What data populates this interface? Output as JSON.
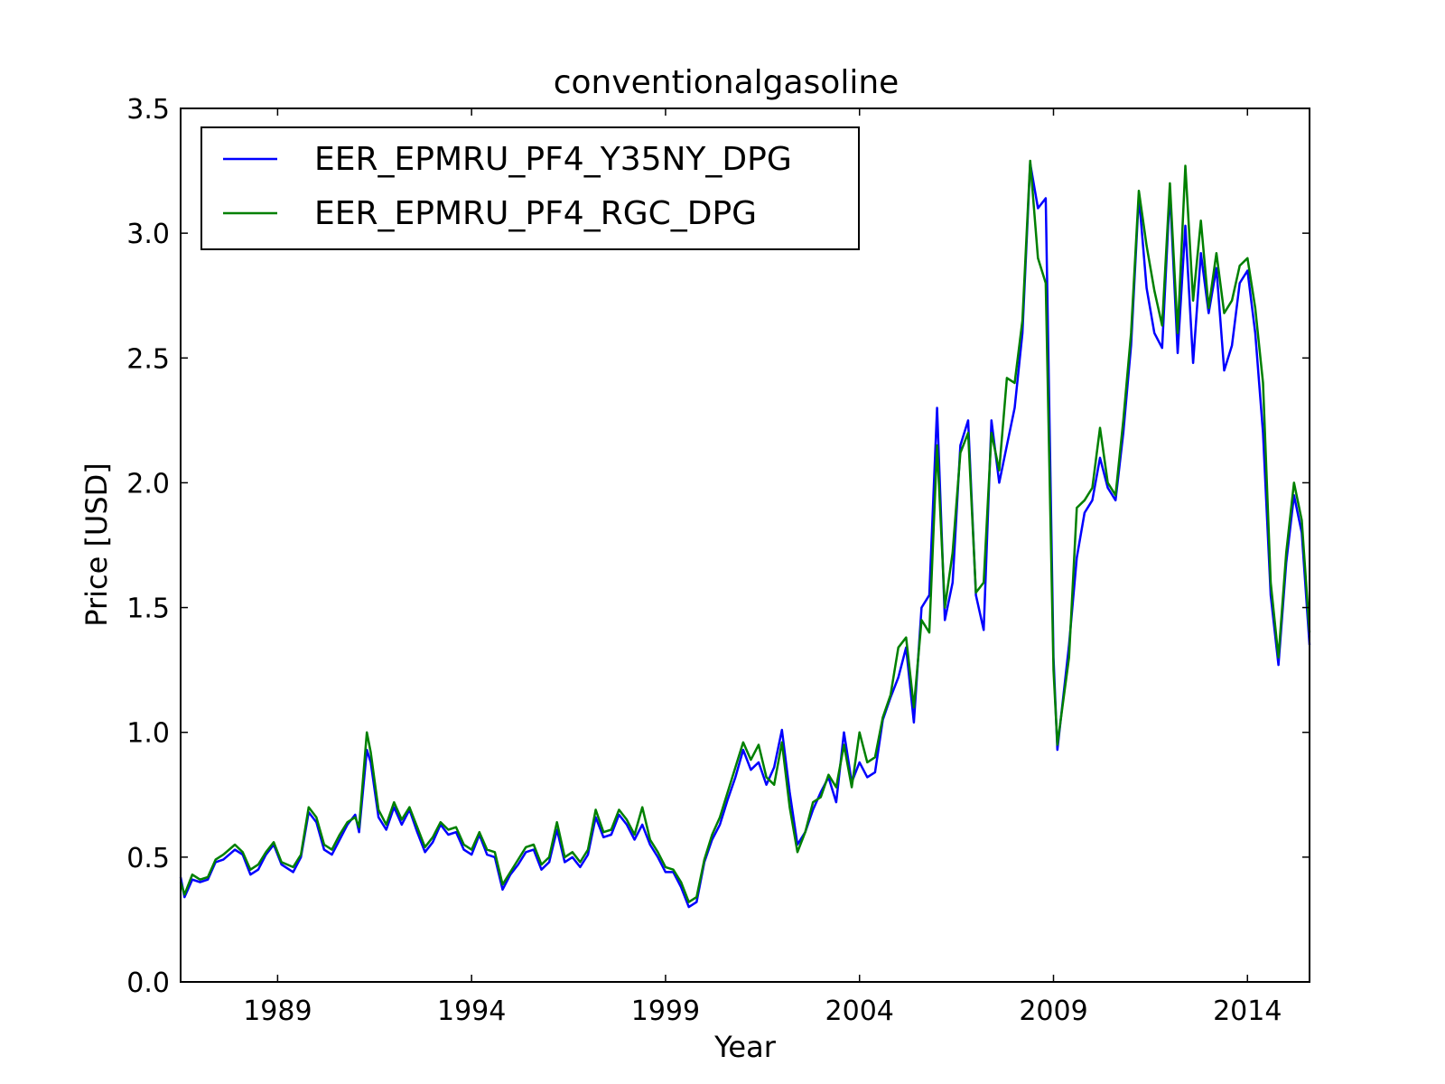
{
  "chart_data": {
    "type": "line",
    "title": "conventionalgasoline",
    "xlabel": "Year",
    "ylabel": "Price [USD]",
    "xlim": [
      1986.5,
      2015.6
    ],
    "ylim": [
      0.0,
      3.5
    ],
    "xticks": [
      1989,
      1994,
      1999,
      2004,
      2009,
      2014
    ],
    "xtick_labels": [
      "1989",
      "1994",
      "1999",
      "2004",
      "2009",
      "2014"
    ],
    "yticks": [
      0.0,
      0.5,
      1.0,
      1.5,
      2.0,
      2.5,
      3.0,
      3.5
    ],
    "ytick_labels": [
      "0.0",
      "0.5",
      "1.0",
      "1.5",
      "2.0",
      "2.5",
      "3.0",
      "3.5"
    ],
    "grid": false,
    "legend_position": "top-left",
    "series": [
      {
        "name": "EER_EPMRU_PF4_Y35NY_DPG",
        "color": "#0000ff",
        "points": [
          [
            1986.5,
            0.42
          ],
          [
            1986.6,
            0.34
          ],
          [
            1986.8,
            0.41
          ],
          [
            1987.0,
            0.4
          ],
          [
            1987.2,
            0.41
          ],
          [
            1987.4,
            0.48
          ],
          [
            1987.6,
            0.49
          ],
          [
            1987.9,
            0.53
          ],
          [
            1988.1,
            0.51
          ],
          [
            1988.3,
            0.43
          ],
          [
            1988.5,
            0.45
          ],
          [
            1988.7,
            0.51
          ],
          [
            1988.9,
            0.55
          ],
          [
            1989.1,
            0.47
          ],
          [
            1989.4,
            0.44
          ],
          [
            1989.6,
            0.5
          ],
          [
            1989.8,
            0.68
          ],
          [
            1990.0,
            0.64
          ],
          [
            1990.2,
            0.53
          ],
          [
            1990.4,
            0.51
          ],
          [
            1990.6,
            0.57
          ],
          [
            1990.8,
            0.63
          ],
          [
            1991.0,
            0.67
          ],
          [
            1991.1,
            0.6
          ],
          [
            1991.3,
            0.93
          ],
          [
            1991.4,
            0.88
          ],
          [
            1991.6,
            0.66
          ],
          [
            1991.8,
            0.61
          ],
          [
            1992.0,
            0.7
          ],
          [
            1992.2,
            0.63
          ],
          [
            1992.4,
            0.69
          ],
          [
            1992.6,
            0.6
          ],
          [
            1992.8,
            0.52
          ],
          [
            1993.0,
            0.56
          ],
          [
            1993.2,
            0.63
          ],
          [
            1993.4,
            0.59
          ],
          [
            1993.6,
            0.6
          ],
          [
            1993.8,
            0.53
          ],
          [
            1994.0,
            0.51
          ],
          [
            1994.2,
            0.59
          ],
          [
            1994.4,
            0.51
          ],
          [
            1994.6,
            0.5
          ],
          [
            1994.8,
            0.37
          ],
          [
            1995.0,
            0.43
          ],
          [
            1995.2,
            0.47
          ],
          [
            1995.4,
            0.52
          ],
          [
            1995.6,
            0.53
          ],
          [
            1995.8,
            0.45
          ],
          [
            1996.0,
            0.48
          ],
          [
            1996.2,
            0.61
          ],
          [
            1996.4,
            0.48
          ],
          [
            1996.6,
            0.5
          ],
          [
            1996.8,
            0.46
          ],
          [
            1997.0,
            0.51
          ],
          [
            1997.2,
            0.66
          ],
          [
            1997.4,
            0.58
          ],
          [
            1997.6,
            0.59
          ],
          [
            1997.8,
            0.67
          ],
          [
            1998.0,
            0.63
          ],
          [
            1998.2,
            0.57
          ],
          [
            1998.4,
            0.63
          ],
          [
            1998.6,
            0.55
          ],
          [
            1998.8,
            0.5
          ],
          [
            1999.0,
            0.44
          ],
          [
            1999.2,
            0.44
          ],
          [
            1999.4,
            0.38
          ],
          [
            1999.6,
            0.3
          ],
          [
            1999.8,
            0.32
          ],
          [
            2000.0,
            0.48
          ],
          [
            2000.2,
            0.57
          ],
          [
            2000.4,
            0.63
          ],
          [
            2000.6,
            0.73
          ],
          [
            2000.8,
            0.82
          ],
          [
            2001.0,
            0.93
          ],
          [
            2001.2,
            0.85
          ],
          [
            2001.4,
            0.88
          ],
          [
            2001.6,
            0.79
          ],
          [
            2001.8,
            0.86
          ],
          [
            2002.0,
            1.01
          ],
          [
            2002.2,
            0.76
          ],
          [
            2002.4,
            0.55
          ],
          [
            2002.6,
            0.6
          ],
          [
            2002.8,
            0.69
          ],
          [
            2003.0,
            0.76
          ],
          [
            2003.2,
            0.82
          ],
          [
            2003.4,
            0.72
          ],
          [
            2003.6,
            1.0
          ],
          [
            2003.8,
            0.8
          ],
          [
            2004.0,
            0.88
          ],
          [
            2004.2,
            0.82
          ],
          [
            2004.4,
            0.84
          ],
          [
            2004.6,
            1.05
          ],
          [
            2004.8,
            1.14
          ],
          [
            2005.0,
            1.22
          ],
          [
            2005.2,
            1.34
          ],
          [
            2005.4,
            1.04
          ],
          [
            2005.6,
            1.5
          ],
          [
            2005.8,
            1.55
          ],
          [
            2006.0,
            2.3
          ],
          [
            2006.2,
            1.45
          ],
          [
            2006.4,
            1.6
          ],
          [
            2006.6,
            2.15
          ],
          [
            2006.8,
            2.25
          ],
          [
            2007.0,
            1.55
          ],
          [
            2007.2,
            1.41
          ],
          [
            2007.4,
            2.25
          ],
          [
            2007.6,
            2.0
          ],
          [
            2007.8,
            2.15
          ],
          [
            2008.0,
            2.3
          ],
          [
            2008.2,
            2.6
          ],
          [
            2008.4,
            3.28
          ],
          [
            2008.6,
            3.1
          ],
          [
            2008.8,
            3.14
          ],
          [
            2009.0,
            1.3
          ],
          [
            2009.1,
            0.93
          ],
          [
            2009.4,
            1.35
          ],
          [
            2009.6,
            1.7
          ],
          [
            2009.8,
            1.88
          ],
          [
            2010.0,
            1.93
          ],
          [
            2010.2,
            2.1
          ],
          [
            2010.4,
            1.98
          ],
          [
            2010.6,
            1.93
          ],
          [
            2010.8,
            2.2
          ],
          [
            2011.0,
            2.55
          ],
          [
            2011.2,
            3.15
          ],
          [
            2011.4,
            2.78
          ],
          [
            2011.6,
            2.6
          ],
          [
            2011.8,
            2.54
          ],
          [
            2012.0,
            3.17
          ],
          [
            2012.2,
            2.52
          ],
          [
            2012.4,
            3.03
          ],
          [
            2012.6,
            2.48
          ],
          [
            2012.8,
            2.92
          ],
          [
            2013.0,
            2.68
          ],
          [
            2013.2,
            2.86
          ],
          [
            2013.4,
            2.45
          ],
          [
            2013.6,
            2.55
          ],
          [
            2013.8,
            2.8
          ],
          [
            2014.0,
            2.85
          ],
          [
            2014.2,
            2.6
          ],
          [
            2014.4,
            2.2
          ],
          [
            2014.6,
            1.55
          ],
          [
            2014.8,
            1.27
          ],
          [
            2015.0,
            1.68
          ],
          [
            2015.2,
            1.95
          ],
          [
            2015.4,
            1.8
          ],
          [
            2015.6,
            1.35
          ]
        ]
      },
      {
        "name": "EER_EPMRU_PF4_RGC_DPG",
        "color": "#008000",
        "points": [
          [
            1986.5,
            0.4
          ],
          [
            1986.6,
            0.35
          ],
          [
            1986.8,
            0.43
          ],
          [
            1987.0,
            0.41
          ],
          [
            1987.2,
            0.42
          ],
          [
            1987.4,
            0.49
          ],
          [
            1987.6,
            0.51
          ],
          [
            1987.9,
            0.55
          ],
          [
            1988.1,
            0.52
          ],
          [
            1988.3,
            0.45
          ],
          [
            1988.5,
            0.47
          ],
          [
            1988.7,
            0.52
          ],
          [
            1988.9,
            0.56
          ],
          [
            1989.1,
            0.48
          ],
          [
            1989.4,
            0.46
          ],
          [
            1989.6,
            0.51
          ],
          [
            1989.8,
            0.7
          ],
          [
            1990.0,
            0.66
          ],
          [
            1990.2,
            0.55
          ],
          [
            1990.4,
            0.53
          ],
          [
            1990.6,
            0.59
          ],
          [
            1990.8,
            0.64
          ],
          [
            1991.0,
            0.66
          ],
          [
            1991.1,
            0.62
          ],
          [
            1991.3,
            1.0
          ],
          [
            1991.4,
            0.92
          ],
          [
            1991.6,
            0.69
          ],
          [
            1991.8,
            0.63
          ],
          [
            1992.0,
            0.72
          ],
          [
            1992.2,
            0.65
          ],
          [
            1992.4,
            0.7
          ],
          [
            1992.6,
            0.62
          ],
          [
            1992.8,
            0.54
          ],
          [
            1993.0,
            0.58
          ],
          [
            1993.2,
            0.64
          ],
          [
            1993.4,
            0.61
          ],
          [
            1993.6,
            0.62
          ],
          [
            1993.8,
            0.55
          ],
          [
            1994.0,
            0.53
          ],
          [
            1994.2,
            0.6
          ],
          [
            1994.4,
            0.53
          ],
          [
            1994.6,
            0.52
          ],
          [
            1994.8,
            0.39
          ],
          [
            1995.0,
            0.44
          ],
          [
            1995.2,
            0.49
          ],
          [
            1995.4,
            0.54
          ],
          [
            1995.6,
            0.55
          ],
          [
            1995.8,
            0.47
          ],
          [
            1996.0,
            0.5
          ],
          [
            1996.2,
            0.64
          ],
          [
            1996.4,
            0.5
          ],
          [
            1996.6,
            0.52
          ],
          [
            1996.8,
            0.48
          ],
          [
            1997.0,
            0.53
          ],
          [
            1997.2,
            0.69
          ],
          [
            1997.4,
            0.6
          ],
          [
            1997.6,
            0.61
          ],
          [
            1997.8,
            0.69
          ],
          [
            1998.0,
            0.65
          ],
          [
            1998.2,
            0.59
          ],
          [
            1998.4,
            0.7
          ],
          [
            1998.6,
            0.57
          ],
          [
            1998.8,
            0.52
          ],
          [
            1999.0,
            0.46
          ],
          [
            1999.2,
            0.45
          ],
          [
            1999.4,
            0.4
          ],
          [
            1999.6,
            0.32
          ],
          [
            1999.8,
            0.34
          ],
          [
            2000.0,
            0.49
          ],
          [
            2000.2,
            0.59
          ],
          [
            2000.4,
            0.66
          ],
          [
            2000.6,
            0.76
          ],
          [
            2000.8,
            0.86
          ],
          [
            2001.0,
            0.96
          ],
          [
            2001.2,
            0.89
          ],
          [
            2001.4,
            0.95
          ],
          [
            2001.6,
            0.82
          ],
          [
            2001.8,
            0.79
          ],
          [
            2002.0,
            0.96
          ],
          [
            2002.2,
            0.7
          ],
          [
            2002.4,
            0.52
          ],
          [
            2002.6,
            0.6
          ],
          [
            2002.8,
            0.72
          ],
          [
            2003.0,
            0.74
          ],
          [
            2003.2,
            0.83
          ],
          [
            2003.4,
            0.78
          ],
          [
            2003.6,
            0.95
          ],
          [
            2003.8,
            0.78
          ],
          [
            2004.0,
            1.0
          ],
          [
            2004.2,
            0.88
          ],
          [
            2004.4,
            0.9
          ],
          [
            2004.6,
            1.06
          ],
          [
            2004.8,
            1.15
          ],
          [
            2005.0,
            1.34
          ],
          [
            2005.2,
            1.38
          ],
          [
            2005.4,
            1.1
          ],
          [
            2005.6,
            1.45
          ],
          [
            2005.8,
            1.4
          ],
          [
            2006.0,
            2.15
          ],
          [
            2006.2,
            1.5
          ],
          [
            2006.4,
            1.72
          ],
          [
            2006.6,
            2.12
          ],
          [
            2006.8,
            2.2
          ],
          [
            2007.0,
            1.56
          ],
          [
            2007.2,
            1.6
          ],
          [
            2007.4,
            2.2
          ],
          [
            2007.6,
            2.05
          ],
          [
            2007.8,
            2.42
          ],
          [
            2008.0,
            2.4
          ],
          [
            2008.2,
            2.65
          ],
          [
            2008.4,
            3.29
          ],
          [
            2008.6,
            2.9
          ],
          [
            2008.8,
            2.8
          ],
          [
            2009.0,
            1.25
          ],
          [
            2009.1,
            0.95
          ],
          [
            2009.4,
            1.3
          ],
          [
            2009.6,
            1.9
          ],
          [
            2009.8,
            1.93
          ],
          [
            2010.0,
            1.98
          ],
          [
            2010.2,
            2.22
          ],
          [
            2010.4,
            2.0
          ],
          [
            2010.6,
            1.95
          ],
          [
            2010.8,
            2.25
          ],
          [
            2011.0,
            2.6
          ],
          [
            2011.2,
            3.17
          ],
          [
            2011.4,
            2.95
          ],
          [
            2011.6,
            2.77
          ],
          [
            2011.8,
            2.63
          ],
          [
            2012.0,
            3.2
          ],
          [
            2012.2,
            2.6
          ],
          [
            2012.4,
            3.27
          ],
          [
            2012.6,
            2.73
          ],
          [
            2012.8,
            3.05
          ],
          [
            2013.0,
            2.7
          ],
          [
            2013.2,
            2.92
          ],
          [
            2013.4,
            2.68
          ],
          [
            2013.6,
            2.73
          ],
          [
            2013.8,
            2.87
          ],
          [
            2014.0,
            2.9
          ],
          [
            2014.2,
            2.7
          ],
          [
            2014.4,
            2.4
          ],
          [
            2014.6,
            1.6
          ],
          [
            2014.8,
            1.3
          ],
          [
            2015.0,
            1.72
          ],
          [
            2015.2,
            2.0
          ],
          [
            2015.4,
            1.85
          ],
          [
            2015.6,
            1.4
          ]
        ]
      }
    ]
  }
}
